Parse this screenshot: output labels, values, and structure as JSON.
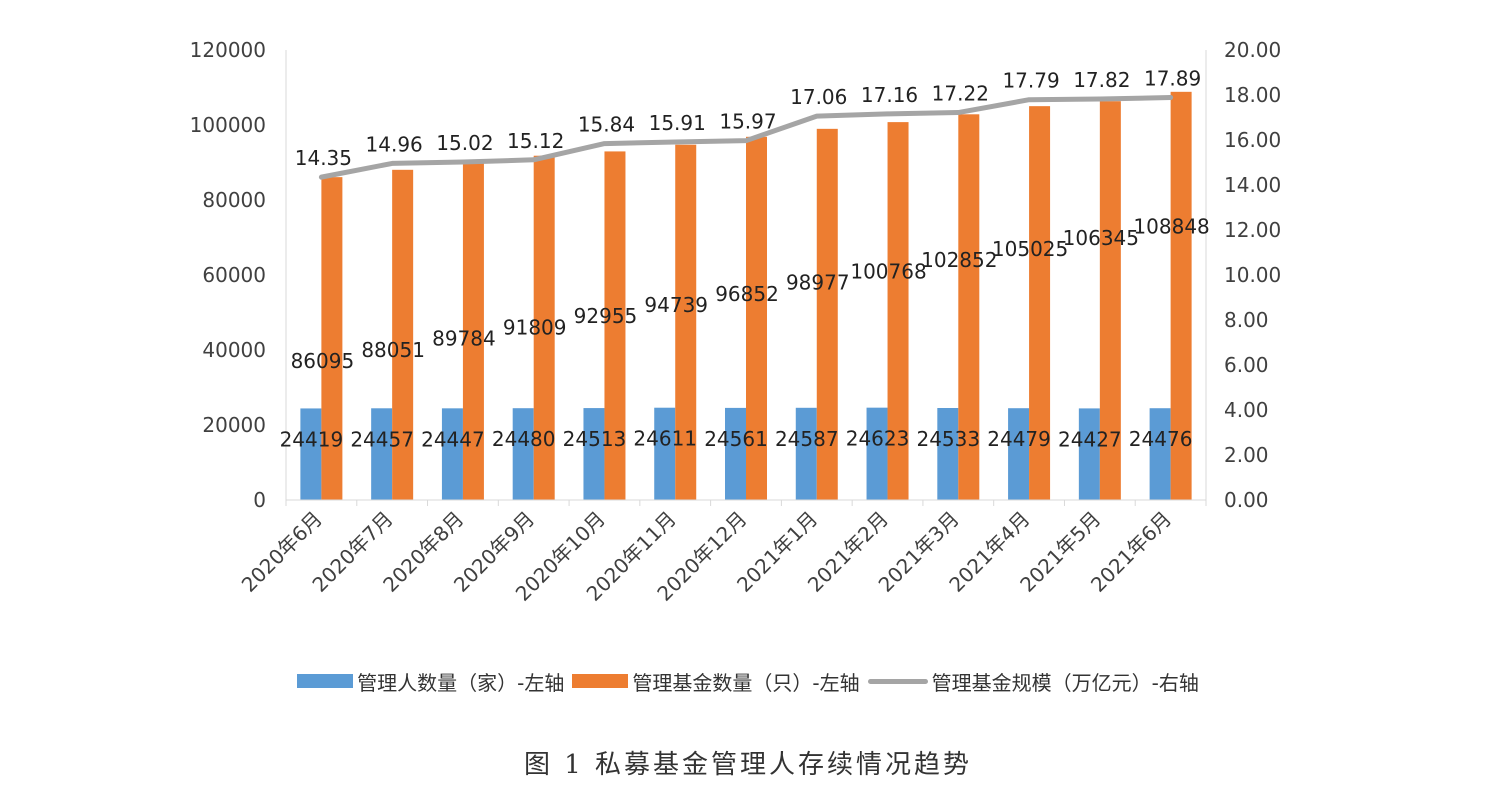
{
  "colors": {
    "managers": "#5b9bd5",
    "funds": "#ed7d31",
    "scale": "#a5a5a5",
    "axis": "#d9d9d9",
    "text": "#404040"
  },
  "caption": "图 1  私募基金管理人存续情况趋势",
  "chart_data": {
    "type": "bar",
    "categories": [
      "2020年6月",
      "2020年7月",
      "2020年8月",
      "2020年9月",
      "2020年10月",
      "2020年11月",
      "2020年12月",
      "2021年1月",
      "2021年2月",
      "2021年3月",
      "2021年4月",
      "2021年5月",
      "2021年6月"
    ],
    "series": [
      {
        "name": "管理人数量（家）-左轴",
        "type": "bar",
        "axis": "left",
        "values": [
          24419,
          24457,
          24447,
          24480,
          24513,
          24611,
          24561,
          24587,
          24623,
          24533,
          24479,
          24427,
          24476
        ],
        "labels": [
          "24419",
          "24457",
          "24447",
          "24480",
          "24513",
          "24611",
          "24561",
          "24587",
          "24623",
          "24533",
          "24479",
          "24427",
          "24476"
        ]
      },
      {
        "name": "管理基金数量（只）-左轴",
        "type": "bar",
        "axis": "left",
        "values": [
          86095,
          88051,
          89784,
          91809,
          92955,
          94739,
          96852,
          98977,
          100768,
          102852,
          105025,
          106345,
          108848
        ],
        "labels": [
          "86095",
          "88051",
          "89784",
          "91809",
          "92955",
          "94739",
          "96852",
          "98977",
          "100768",
          "102852",
          "105025",
          "106345",
          "108848"
        ]
      },
      {
        "name": "管理基金规模（万亿元）-右轴",
        "type": "line",
        "axis": "right",
        "values": [
          14.35,
          14.96,
          15.02,
          15.12,
          15.84,
          15.91,
          15.97,
          17.06,
          17.16,
          17.22,
          17.79,
          17.82,
          17.89
        ],
        "labels": [
          "14.35",
          "14.96",
          "15.02",
          "15.12",
          "15.84",
          "15.91",
          "15.97",
          "17.06",
          "17.16",
          "17.22",
          "17.79",
          "17.82",
          "17.89"
        ]
      }
    ],
    "ylim": [
      0,
      120000
    ],
    "y_ticks": [
      "0",
      "20000",
      "40000",
      "60000",
      "80000",
      "100000",
      "120000"
    ],
    "y2lim": [
      0,
      20
    ],
    "y2_ticks": [
      "0.00",
      "2.00",
      "4.00",
      "6.00",
      "8.00",
      "10.00",
      "12.00",
      "14.00",
      "16.00",
      "18.00",
      "20.00"
    ],
    "grid": false,
    "legend_position": "bottom"
  }
}
